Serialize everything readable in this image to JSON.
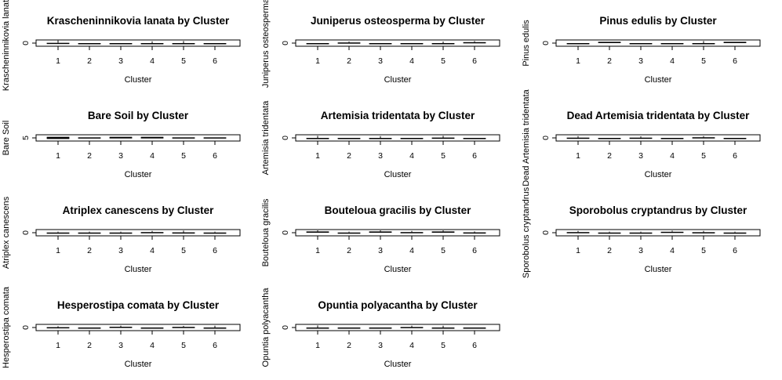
{
  "chart_data": [
    {
      "type": "box",
      "title": "Krascheninnikovia lanata  by Cluster",
      "xlabel": "Cluster",
      "ylabel": "Krascheninnikovia lanata",
      "categories": [
        "1",
        "2",
        "3",
        "4",
        "5",
        "6"
      ],
      "yticks": [
        "0"
      ],
      "ylim": [
        -0.05,
        0.05
      ],
      "boxes": [
        {
          "q1": 0,
          "q3": 0.004,
          "hi": 0.03
        },
        {
          "q1": 0,
          "q3": 0,
          "hi": 0
        },
        {
          "q1": 0,
          "q3": 0,
          "hi": 0
        },
        {
          "q1": 0,
          "q3": 0,
          "hi": 0.015
        },
        {
          "q1": 0,
          "q3": 0,
          "hi": 0.02
        },
        {
          "q1": 0,
          "q3": 0,
          "hi": 0
        }
      ]
    },
    {
      "type": "box",
      "title": "Juniperus osteosperma by Cluster",
      "xlabel": "Cluster",
      "ylabel": "Juniperus osteosperma",
      "categories": [
        "1",
        "2",
        "3",
        "4",
        "5",
        "6"
      ],
      "yticks": [
        "0"
      ],
      "ylim": [
        -0.05,
        0.05
      ],
      "boxes": [
        {
          "q1": 0,
          "q3": 0,
          "hi": 0
        },
        {
          "q1": 0,
          "q3": 0.01,
          "hi": 0.012
        },
        {
          "q1": 0,
          "q3": 0,
          "hi": 0
        },
        {
          "q1": 0,
          "q3": 0,
          "hi": 0
        },
        {
          "q1": 0,
          "q3": 0,
          "hi": 0.012
        },
        {
          "q1": 0,
          "q3": 0.015,
          "hi": 0.02
        }
      ]
    },
    {
      "type": "box",
      "title": "Pinus edulis  by Cluster",
      "xlabel": "Cluster",
      "ylabel": "Pinus edulis",
      "categories": [
        "1",
        "2",
        "3",
        "4",
        "5",
        "6"
      ],
      "yticks": [
        "0"
      ],
      "ylim": [
        -0.05,
        0.05
      ],
      "boxes": [
        {
          "q1": 0,
          "q3": 0,
          "hi": 0
        },
        {
          "q1": 0,
          "q3": 0.02,
          "hi": 0.02
        },
        {
          "q1": 0,
          "q3": 0,
          "hi": 0
        },
        {
          "q1": 0,
          "q3": 0,
          "hi": 0
        },
        {
          "q1": 0,
          "q3": 0,
          "hi": 0.02
        },
        {
          "q1": 0,
          "q3": 0.02,
          "hi": 0.02
        }
      ]
    },
    {
      "type": "box",
      "title": "Bare Soil by Cluster",
      "xlabel": "Cluster",
      "ylabel": "Bare Soil",
      "categories": [
        "1",
        "2",
        "3",
        "4",
        "5",
        "6"
      ],
      "yticks": [
        "5"
      ],
      "ylim": [
        4.7,
        5.3
      ],
      "boxes": [
        {
          "q1": 4.9,
          "q3": 5.1,
          "hi": 5.1
        },
        {
          "q1": 4.95,
          "q3": 5.05,
          "hi": 5.05
        },
        {
          "q1": 4.95,
          "q3": 5.1,
          "hi": 5.1
        },
        {
          "q1": 4.95,
          "q3": 5.1,
          "hi": 5.1
        },
        {
          "q1": 4.95,
          "q3": 5.05,
          "hi": 5.05
        },
        {
          "q1": 4.95,
          "q3": 5.05,
          "hi": 5.05
        }
      ]
    },
    {
      "type": "box",
      "title": "Artemisia tridentata  by Cluster",
      "xlabel": "Cluster",
      "ylabel": "Artemisia tridentata",
      "categories": [
        "1",
        "2",
        "3",
        "4",
        "5",
        "6"
      ],
      "yticks": [
        "0"
      ],
      "ylim": [
        -0.05,
        0.05
      ],
      "boxes": [
        {
          "q1": 0,
          "q3": 0,
          "hi": 0.02
        },
        {
          "q1": 0,
          "q3": 0,
          "hi": 0
        },
        {
          "q1": 0,
          "q3": 0,
          "hi": 0.015
        },
        {
          "q1": 0,
          "q3": 0,
          "hi": 0
        },
        {
          "q1": 0,
          "q3": 0.005,
          "hi": 0.02
        },
        {
          "q1": 0,
          "q3": 0,
          "hi": 0
        }
      ]
    },
    {
      "type": "box",
      "title": "Dead Artemisia tridentata  by Cluster",
      "xlabel": "Cluster",
      "ylabel": "Dead Artemisia tridentata",
      "categories": [
        "1",
        "2",
        "3",
        "4",
        "5",
        "6"
      ],
      "yticks": [
        "0"
      ],
      "ylim": [
        -0.05,
        0.05
      ],
      "boxes": [
        {
          "q1": 0,
          "q3": 0.004,
          "hi": 0.015
        },
        {
          "q1": 0,
          "q3": 0,
          "hi": 0
        },
        {
          "q1": 0,
          "q3": 0.004,
          "hi": 0.012
        },
        {
          "q1": 0,
          "q3": 0,
          "hi": 0
        },
        {
          "q1": 0,
          "q3": 0.01,
          "hi": 0.015
        },
        {
          "q1": 0,
          "q3": 0,
          "hi": 0
        }
      ]
    },
    {
      "type": "box",
      "title": "Atriplex canescens by Cluster",
      "xlabel": "Cluster",
      "ylabel": "Atriplex canescens",
      "categories": [
        "1",
        "2",
        "3",
        "4",
        "5",
        "6"
      ],
      "yticks": [
        "0"
      ],
      "ylim": [
        -0.05,
        0.05
      ],
      "boxes": [
        {
          "q1": 0,
          "q3": 0.003,
          "hi": 0.005
        },
        {
          "q1": 0,
          "q3": 0.003,
          "hi": 0.005
        },
        {
          "q1": 0,
          "q3": 0.003,
          "hi": 0.005
        },
        {
          "q1": 0,
          "q3": 0.01,
          "hi": 0.015
        },
        {
          "q1": 0,
          "q3": 0.005,
          "hi": 0.02
        },
        {
          "q1": 0,
          "q3": 0.003,
          "hi": 0.005
        }
      ]
    },
    {
      "type": "box",
      "title": "Bouteloua gracilis by Cluster",
      "xlabel": "Cluster",
      "ylabel": "Bouteloua gracilis",
      "categories": [
        "1",
        "2",
        "3",
        "4",
        "5",
        "6"
      ],
      "yticks": [
        "0"
      ],
      "ylim": [
        -0.05,
        0.05
      ],
      "boxes": [
        {
          "q1": 0,
          "q3": 0.02,
          "hi": 0.025
        },
        {
          "q1": 0,
          "q3": 0.003,
          "hi": 0.005
        },
        {
          "q1": 0,
          "q3": 0.02,
          "hi": 0.025
        },
        {
          "q1": 0,
          "q3": 0.01,
          "hi": 0.015
        },
        {
          "q1": 0,
          "q3": 0.02,
          "hi": 0.025
        },
        {
          "q1": 0,
          "q3": 0.005,
          "hi": 0.008
        }
      ]
    },
    {
      "type": "box",
      "title": "Sporobolus cryptandrus by Cluster",
      "xlabel": "Cluster",
      "ylabel": "Sporobolus cryptandrus",
      "categories": [
        "1",
        "2",
        "3",
        "4",
        "5",
        "6"
      ],
      "yticks": [
        "0"
      ],
      "ylim": [
        -0.05,
        0.05
      ],
      "boxes": [
        {
          "q1": 0,
          "q3": 0.01,
          "hi": 0.015
        },
        {
          "q1": 0,
          "q3": 0.003,
          "hi": 0.005
        },
        {
          "q1": 0,
          "q3": 0.003,
          "hi": 0.005
        },
        {
          "q1": 0,
          "q3": 0.015,
          "hi": 0.02
        },
        {
          "q1": 0,
          "q3": 0.008,
          "hi": 0.015
        },
        {
          "q1": 0,
          "q3": 0.003,
          "hi": 0.005
        }
      ]
    },
    {
      "type": "box",
      "title": "Hesperostipa comata by Cluster",
      "xlabel": "Cluster",
      "ylabel": "Hesperostipa comata",
      "categories": [
        "1",
        "2",
        "3",
        "4",
        "5",
        "6"
      ],
      "yticks": [
        "0"
      ],
      "ylim": [
        -0.05,
        0.05
      ],
      "boxes": [
        {
          "q1": 0,
          "q3": 0.005,
          "hi": 0.008
        },
        {
          "q1": 0,
          "q3": 0,
          "hi": 0
        },
        {
          "q1": 0,
          "q3": 0.012,
          "hi": 0.015
        },
        {
          "q1": 0,
          "q3": 0,
          "hi": 0
        },
        {
          "q1": 0,
          "q3": 0.01,
          "hi": 0.012
        },
        {
          "q1": 0,
          "q3": 0,
          "hi": 0.015
        }
      ]
    },
    {
      "type": "box",
      "title": "Opuntia polyacantha  by Cluster",
      "xlabel": "Cluster",
      "ylabel": "Opuntia polyacantha",
      "categories": [
        "1",
        "2",
        "3",
        "4",
        "5",
        "6"
      ],
      "yticks": [
        "0"
      ],
      "ylim": [
        -0.05,
        0.05
      ],
      "boxes": [
        {
          "q1": 0,
          "q3": 0,
          "hi": 0.02
        },
        {
          "q1": 0,
          "q3": 0,
          "hi": 0
        },
        {
          "q1": 0,
          "q3": 0,
          "hi": 0
        },
        {
          "q1": 0,
          "q3": 0.008,
          "hi": 0.015
        },
        {
          "q1": 0,
          "q3": 0,
          "hi": 0.015
        },
        {
          "q1": 0,
          "q3": 0,
          "hi": 0
        }
      ]
    }
  ]
}
